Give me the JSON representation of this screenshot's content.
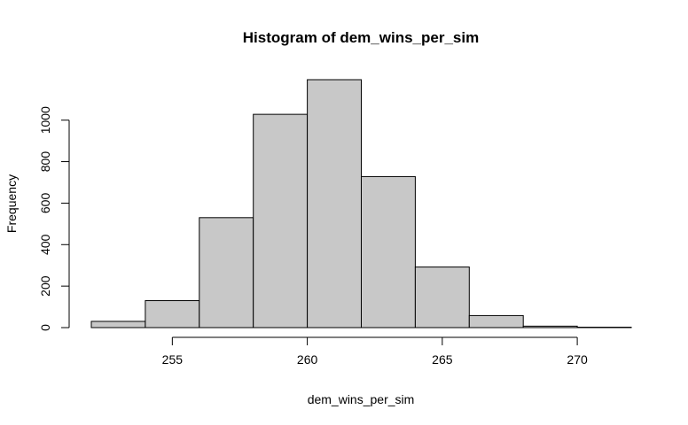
{
  "chart_data": {
    "type": "bar",
    "title": "Histogram of dem_wins_per_sim",
    "xlabel": "dem_wins_per_sim",
    "ylabel": "Frequency",
    "bins": [
      {
        "start": 252,
        "end": 254,
        "count": 30
      },
      {
        "start": 254,
        "end": 256,
        "count": 130
      },
      {
        "start": 256,
        "end": 258,
        "count": 530
      },
      {
        "start": 258,
        "end": 260,
        "count": 1028
      },
      {
        "start": 260,
        "end": 262,
        "count": 1195
      },
      {
        "start": 262,
        "end": 264,
        "count": 728
      },
      {
        "start": 264,
        "end": 266,
        "count": 292
      },
      {
        "start": 266,
        "end": 268,
        "count": 58
      },
      {
        "start": 268,
        "end": 270,
        "count": 7
      },
      {
        "start": 270,
        "end": 272,
        "count": 2
      }
    ],
    "xticks": [
      255,
      260,
      265,
      270
    ],
    "yticks": [
      0,
      200,
      400,
      600,
      800,
      1000
    ],
    "xlim": [
      252,
      272
    ],
    "ylim": [
      0,
      1195
    ],
    "grid": false,
    "bar_fill": "#c8c8c8",
    "bar_stroke": "#000000"
  }
}
